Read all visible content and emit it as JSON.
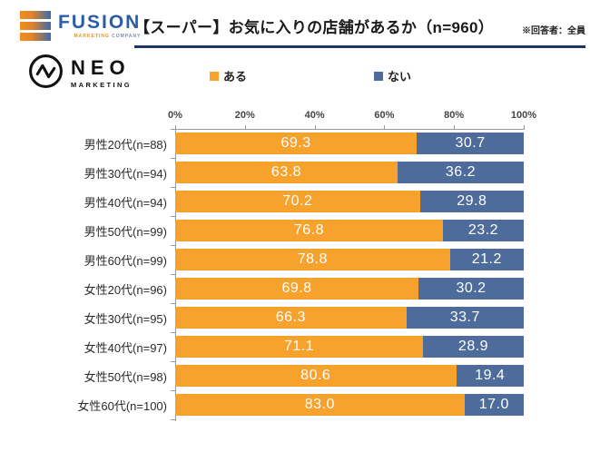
{
  "header": {
    "fusion_logo": {
      "name": "FUSION",
      "tagline_left": "MARKETING",
      "tagline_right": "COMPANY"
    },
    "neo_logo": {
      "name": "NEO",
      "tagline": "MARKETING"
    },
    "title": "【スーパー】お気に入りの店舗があるか（n=960）",
    "note": "※回答者：全員"
  },
  "colors": {
    "aru_orange": "#F6A22D",
    "nai_blue": "#4D6C9B",
    "title_underline": "#1E3465",
    "fusion_blue": "#2B5CA8",
    "fusion_orange": "#EF8E1F"
  },
  "legend": [
    {
      "label": "ある",
      "color": "#F6A22D"
    },
    {
      "label": "ない",
      "color": "#4D6C9B"
    }
  ],
  "chart_data": {
    "type": "bar",
    "orientation": "horizontal",
    "stacked": true,
    "title": "【スーパー】お気に入りの店舗があるか（n=960）",
    "categories": [
      "男性20代(n=88)",
      "男性30代(n=94)",
      "男性40代(n=94)",
      "男性50代(n=99)",
      "男性60代(n=99)",
      "女性20代(n=96)",
      "女性30代(n=95)",
      "女性40代(n=97)",
      "女性50代(n=98)",
      "女性60代(n=100)"
    ],
    "series": [
      {
        "name": "ある",
        "color": "#F6A22D",
        "values": [
          69.3,
          63.8,
          70.2,
          76.8,
          78.8,
          69.8,
          66.3,
          71.1,
          80.6,
          83.0
        ]
      },
      {
        "name": "ない",
        "color": "#4D6C9B",
        "values": [
          30.7,
          36.2,
          29.8,
          23.2,
          21.2,
          30.2,
          33.7,
          28.9,
          19.4,
          17.0
        ]
      }
    ],
    "x_axis": {
      "min": 0,
      "max": 100,
      "tick_labels": [
        "0%",
        "20%",
        "40%",
        "60%",
        "80%",
        "100%"
      ]
    },
    "value_label_format": "one-decimal-inside",
    "legend_position": "top-center",
    "grid": false
  }
}
